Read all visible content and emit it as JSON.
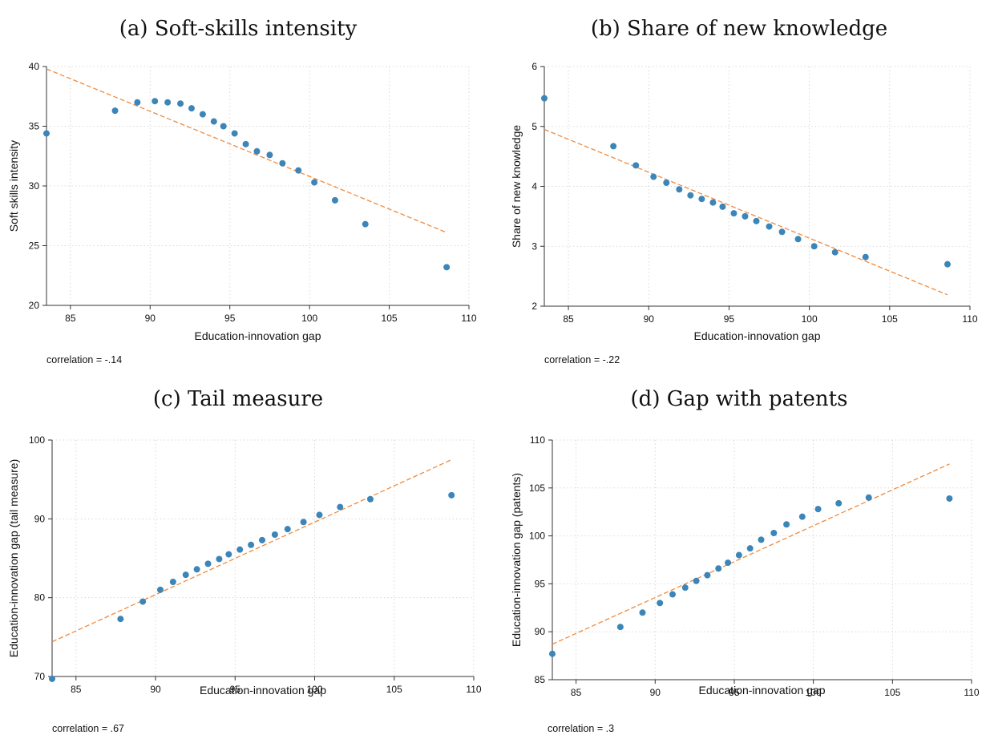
{
  "chart_data": [
    {
      "type": "scatter",
      "title": "(a) Soft-skills intensity",
      "xlabel": "Education-innovation gap",
      "ylabel": "Soft skills intensity",
      "note": "correlation = -.14",
      "xlim": [
        83.5,
        110
      ],
      "ylim": [
        20,
        40
      ],
      "xticks": [
        85,
        90,
        95,
        100,
        105,
        110
      ],
      "yticks": [
        20,
        25,
        30,
        35,
        40
      ],
      "points": {
        "x": [
          83.5,
          87.8,
          89.2,
          90.3,
          91.1,
          91.9,
          92.6,
          93.3,
          94.0,
          94.6,
          95.3,
          96.0,
          96.7,
          97.5,
          98.3,
          99.3,
          100.3,
          101.6,
          103.5,
          108.6
        ],
        "y": [
          34.4,
          36.3,
          37.0,
          37.1,
          37.0,
          36.9,
          36.5,
          36.0,
          35.4,
          35.0,
          34.4,
          33.5,
          32.9,
          32.6,
          31.9,
          31.3,
          30.3,
          28.8,
          26.8,
          23.2
        ]
      },
      "fit": {
        "x": [
          83.5,
          108.6
        ],
        "y": [
          39.8,
          26.1
        ]
      },
      "colors": {
        "points": "#3b85b8",
        "fit": "#f08a3c"
      }
    },
    {
      "type": "scatter",
      "title": "(b) Share of new knowledge",
      "xlabel": "Education-innovation gap",
      "ylabel": "Share of new knowledge",
      "note": "correlation = -.22",
      "xlim": [
        83.5,
        110
      ],
      "ylim": [
        2,
        6
      ],
      "xticks": [
        85,
        90,
        95,
        100,
        105,
        110
      ],
      "yticks": [
        2,
        3,
        4,
        5,
        6
      ],
      "points": {
        "x": [
          83.5,
          87.8,
          89.2,
          90.3,
          91.1,
          91.9,
          92.6,
          93.3,
          94.0,
          94.6,
          95.3,
          96.0,
          96.7,
          97.5,
          98.3,
          99.3,
          100.3,
          101.6,
          103.5,
          108.6
        ],
        "y": [
          5.47,
          4.67,
          4.35,
          4.16,
          4.06,
          3.95,
          3.85,
          3.79,
          3.73,
          3.66,
          3.55,
          3.5,
          3.42,
          3.33,
          3.24,
          3.12,
          3.0,
          2.9,
          2.82,
          2.7
        ]
      },
      "fit": {
        "x": [
          83.5,
          108.6
        ],
        "y": [
          4.95,
          2.19
        ]
      },
      "colors": {
        "points": "#3b85b8",
        "fit": "#f08a3c"
      }
    },
    {
      "type": "scatter",
      "title": "(c) Tail measure",
      "xlabel": "Education-innovation gap",
      "ylabel": "Education-innovation gap (tail measure)",
      "note": "correlation = .67",
      "xlim": [
        83.5,
        110
      ],
      "ylim": [
        70,
        100
      ],
      "xticks": [
        85,
        90,
        95,
        100,
        105,
        110
      ],
      "yticks": [
        70,
        80,
        90,
        100
      ],
      "points": {
        "x": [
          83.5,
          87.8,
          89.2,
          90.3,
          91.1,
          91.9,
          92.6,
          93.3,
          94.0,
          94.6,
          95.3,
          96.0,
          96.7,
          97.5,
          98.3,
          99.3,
          100.3,
          101.6,
          103.5,
          108.6
        ],
        "y": [
          69.7,
          77.3,
          79.5,
          81.0,
          82.0,
          82.9,
          83.6,
          84.3,
          84.9,
          85.5,
          86.1,
          86.7,
          87.3,
          88.0,
          88.7,
          89.6,
          90.5,
          91.5,
          92.5,
          93.0
        ]
      },
      "fit": {
        "x": [
          83.5,
          108.6
        ],
        "y": [
          74.4,
          97.5
        ]
      },
      "colors": {
        "points": "#3b85b8",
        "fit": "#f08a3c"
      }
    },
    {
      "type": "scatter",
      "title": "(d) Gap with patents",
      "xlabel": "Education-innovation gap",
      "ylabel": "Education-innovation gap (patents)",
      "note": "correlation = .3",
      "xlim": [
        83.5,
        110
      ],
      "ylim": [
        85,
        110
      ],
      "xticks": [
        85,
        90,
        95,
        100,
        105,
        110
      ],
      "yticks": [
        85,
        90,
        95,
        100,
        105,
        110
      ],
      "points": {
        "x": [
          83.5,
          87.8,
          89.2,
          90.3,
          91.1,
          91.9,
          92.6,
          93.3,
          94.0,
          94.6,
          95.3,
          96.0,
          96.7,
          97.5,
          98.3,
          99.3,
          100.3,
          101.6,
          103.5,
          108.6
        ],
        "y": [
          87.7,
          90.5,
          92.0,
          93.0,
          93.9,
          94.6,
          95.3,
          95.9,
          96.6,
          97.2,
          98.0,
          98.7,
          99.6,
          100.3,
          101.2,
          102.0,
          102.8,
          103.4,
          104.0,
          103.9
        ]
      },
      "fit": {
        "x": [
          83.5,
          108.6
        ],
        "y": [
          88.7,
          107.5
        ]
      },
      "colors": {
        "points": "#3b85b8",
        "fit": "#f08a3c"
      }
    }
  ]
}
